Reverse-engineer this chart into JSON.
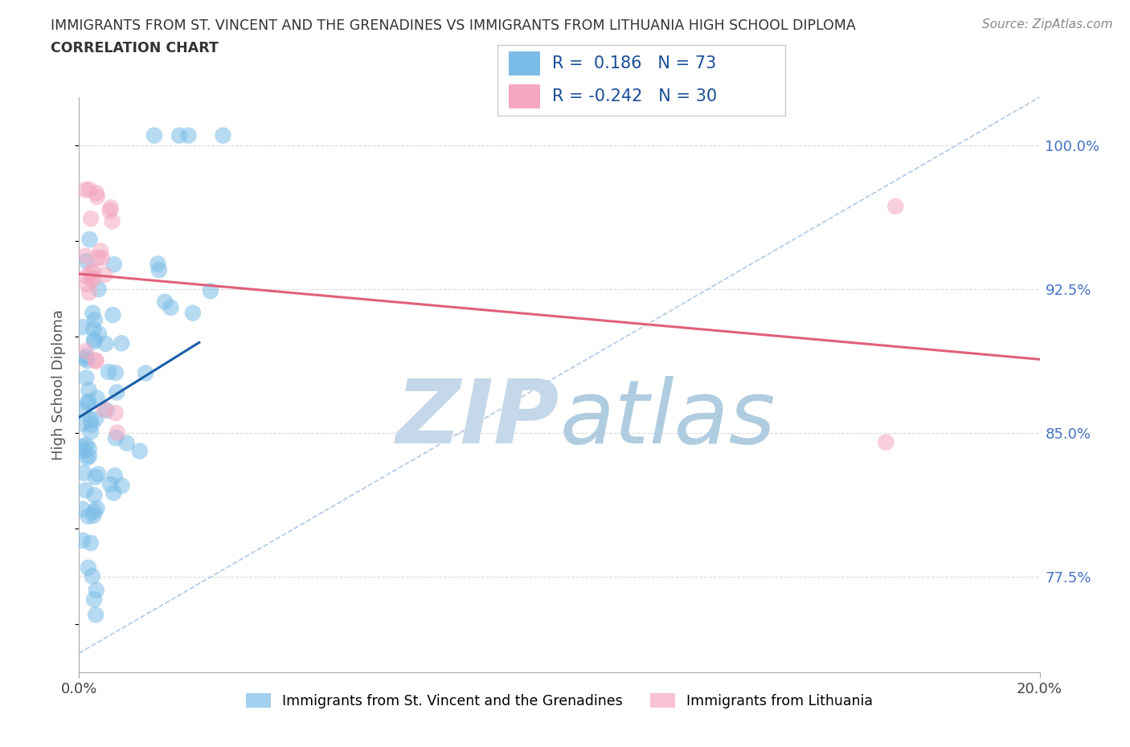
{
  "title_line1": "IMMIGRANTS FROM ST. VINCENT AND THE GRENADINES VS IMMIGRANTS FROM LITHUANIA HIGH SCHOOL DIPLOMA",
  "title_line2": "CORRELATION CHART",
  "source_text": "Source: ZipAtlas.com",
  "ylabel": "High School Diploma",
  "legend_label1": "Immigrants from St. Vincent and the Grenadines",
  "legend_label2": "Immigrants from Lithuania",
  "R1": 0.186,
  "N1": 73,
  "R2": -0.242,
  "N2": 30,
  "color1": "#7bbde8",
  "color2": "#f4a8bf",
  "trendline1_color": "#1a5fa8",
  "trendline2_color": "#e0607a",
  "dashed_ref_color": "#99bbdd",
  "grid_color": "#cccccc",
  "xmin": 0.0,
  "xmax": 0.2,
  "ymin": 0.725,
  "ymax": 1.025,
  "yticks": [
    0.775,
    0.85,
    0.925,
    1.0
  ],
  "ytick_labels": [
    "77.5%",
    "85.0%",
    "92.5%",
    "100.0%"
  ],
  "xticks": [
    0.0,
    0.2
  ],
  "xtick_labels": [
    "0.0%",
    "20.0%"
  ],
  "watermark_ZIP_color": "#c5d8ea",
  "watermark_atlas_color": "#b0cce0",
  "title_color": "#333333",
  "source_color": "#888888",
  "ytick_color": "#4472c4"
}
